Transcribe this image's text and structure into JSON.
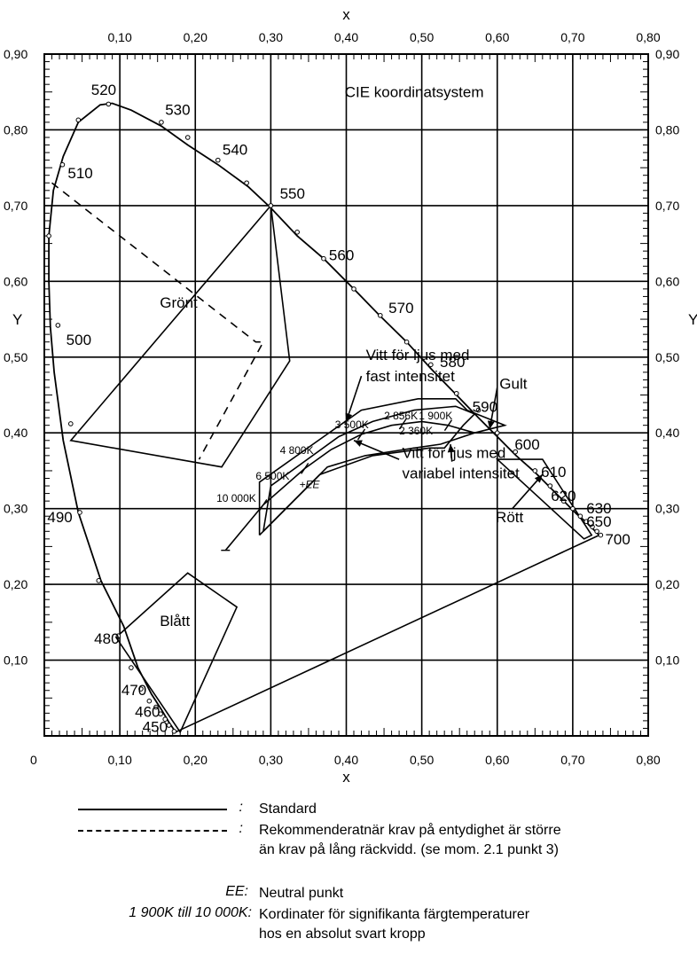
{
  "chart_data": {
    "type": "line",
    "title": "CIE koordinatsystem",
    "xlabel": "x",
    "ylabel": "Y",
    "xlim": [
      0,
      0.8
    ],
    "ylim": [
      0,
      0.9
    ],
    "grid": true,
    "x_ticks": [
      "0",
      "0,10",
      "0,20",
      "0,30",
      "0,40",
      "0,50",
      "0,60",
      "0,70",
      "0,80"
    ],
    "x_ticks_top": [
      "0,10",
      "0,20",
      "0,30",
      "0,40",
      "0,50",
      "0,60",
      "0,70",
      "0,80"
    ],
    "y_ticks": [
      "0,10",
      "0,20",
      "0,30",
      "0,40",
      "0,50",
      "0,60",
      "0,70",
      "0,80",
      "0,90"
    ],
    "y_ticks_right": [
      "0,10",
      "0,20",
      "0,30",
      "0,40",
      "0,50",
      "0,60",
      "0,70",
      "0,80",
      "0,90"
    ],
    "locus": [
      [
        0.174,
        0.005
      ],
      [
        0.165,
        0.018
      ],
      [
        0.155,
        0.035
      ],
      [
        0.142,
        0.055
      ],
      [
        0.124,
        0.09
      ],
      [
        0.105,
        0.145
      ],
      [
        0.075,
        0.205
      ],
      [
        0.045,
        0.295
      ],
      [
        0.025,
        0.39
      ],
      [
        0.013,
        0.48
      ],
      [
        0.008,
        0.54
      ],
      [
        0.006,
        0.6
      ],
      [
        0.006,
        0.66
      ],
      [
        0.012,
        0.72
      ],
      [
        0.025,
        0.765
      ],
      [
        0.045,
        0.81
      ],
      [
        0.074,
        0.833
      ],
      [
        0.09,
        0.835
      ],
      [
        0.115,
        0.826
      ],
      [
        0.155,
        0.805
      ],
      [
        0.19,
        0.78
      ],
      [
        0.23,
        0.754
      ],
      [
        0.27,
        0.725
      ],
      [
        0.3,
        0.697
      ],
      [
        0.335,
        0.66
      ],
      [
        0.37,
        0.63
      ],
      [
        0.41,
        0.59
      ],
      [
        0.444,
        0.555
      ],
      [
        0.48,
        0.52
      ],
      [
        0.512,
        0.485
      ],
      [
        0.546,
        0.45
      ],
      [
        0.575,
        0.42
      ],
      [
        0.6,
        0.395
      ],
      [
        0.625,
        0.37
      ],
      [
        0.65,
        0.348
      ],
      [
        0.67,
        0.328
      ],
      [
        0.69,
        0.308
      ],
      [
        0.705,
        0.293
      ],
      [
        0.718,
        0.282
      ],
      [
        0.735,
        0.265
      ]
    ],
    "locus_markers": [
      [
        0.172,
        0.006
      ],
      [
        0.165,
        0.014
      ],
      [
        0.16,
        0.022
      ],
      [
        0.154,
        0.029
      ],
      [
        0.148,
        0.038
      ],
      [
        0.139,
        0.046
      ],
      [
        0.128,
        0.062
      ],
      [
        0.115,
        0.09
      ],
      [
        0.098,
        0.132
      ],
      [
        0.072,
        0.205
      ],
      [
        0.047,
        0.295
      ],
      [
        0.035,
        0.412
      ],
      [
        0.018,
        0.542
      ],
      [
        0.006,
        0.66
      ],
      [
        0.024,
        0.754
      ],
      [
        0.045,
        0.813
      ],
      [
        0.085,
        0.834
      ],
      [
        0.155,
        0.81
      ],
      [
        0.19,
        0.79
      ],
      [
        0.23,
        0.76
      ],
      [
        0.268,
        0.73
      ],
      [
        0.3,
        0.7
      ],
      [
        0.335,
        0.665
      ],
      [
        0.37,
        0.63
      ],
      [
        0.41,
        0.59
      ],
      [
        0.445,
        0.555
      ],
      [
        0.48,
        0.52
      ],
      [
        0.512,
        0.49
      ],
      [
        0.546,
        0.452
      ],
      [
        0.575,
        0.43
      ],
      [
        0.6,
        0.4
      ],
      [
        0.624,
        0.375
      ],
      [
        0.65,
        0.35
      ],
      [
        0.67,
        0.33
      ],
      [
        0.688,
        0.31
      ],
      [
        0.7,
        0.3
      ],
      [
        0.71,
        0.29
      ],
      [
        0.718,
        0.283
      ],
      [
        0.726,
        0.276
      ],
      [
        0.732,
        0.27
      ],
      [
        0.737,
        0.265
      ]
    ],
    "purple_line": [
      [
        0.174,
        0.005
      ],
      [
        0.735,
        0.265
      ]
    ],
    "wavelengths": [
      {
        "label": "450",
        "x": 0.13,
        "y": 0.005
      },
      {
        "label": "460",
        "x": 0.12,
        "y": 0.025
      },
      {
        "label": "470",
        "x": 0.102,
        "y": 0.054
      },
      {
        "label": "480",
        "x": 0.066,
        "y": 0.122
      },
      {
        "label": "490",
        "x": 0.004,
        "y": 0.282
      },
      {
        "label": "500",
        "x": 0.029,
        "y": 0.516
      },
      {
        "label": "510",
        "x": 0.031,
        "y": 0.736
      },
      {
        "label": "520",
        "x": 0.062,
        "y": 0.846
      },
      {
        "label": "530",
        "x": 0.16,
        "y": 0.82
      },
      {
        "label": "540",
        "x": 0.236,
        "y": 0.767
      },
      {
        "label": "550",
        "x": 0.312,
        "y": 0.709
      },
      {
        "label": "560",
        "x": 0.377,
        "y": 0.628
      },
      {
        "label": "570",
        "x": 0.456,
        "y": 0.558
      },
      {
        "label": "580",
        "x": 0.524,
        "y": 0.487
      },
      {
        "label": "590",
        "x": 0.567,
        "y": 0.428
      },
      {
        "label": "600",
        "x": 0.623,
        "y": 0.378
      },
      {
        "label": "610",
        "x": 0.658,
        "y": 0.342
      },
      {
        "label": "620",
        "x": 0.671,
        "y": 0.31
      },
      {
        "label": "630",
        "x": 0.718,
        "y": 0.294
      },
      {
        "label": "650",
        "x": 0.718,
        "y": 0.276
      },
      {
        "label": "700",
        "x": 0.743,
        "y": 0.253
      }
    ],
    "regions": [
      {
        "label": "Grönt",
        "x": 0.153,
        "y": 0.565,
        "outline": [
          [
            0.3,
            0.7
          ],
          [
            0.325,
            0.495
          ],
          [
            0.235,
            0.355
          ],
          [
            0.035,
            0.39
          ]
        ]
      },
      {
        "label": "Blått",
        "x": 0.153,
        "y": 0.145,
        "outline": [
          [
            0.095,
            0.13
          ],
          [
            0.19,
            0.215
          ],
          [
            0.255,
            0.17
          ],
          [
            0.18,
            0.005
          ]
        ]
      },
      {
        "label": "Gult",
        "x": 0.603,
        "y": 0.458,
        "outline": []
      },
      {
        "label": "Rött",
        "x": 0.598,
        "y": 0.282,
        "outline": [
          [
            0.6,
            0.365
          ],
          [
            0.66,
            0.365
          ],
          [
            0.725,
            0.265
          ],
          [
            0.715,
            0.26
          ]
        ]
      }
    ],
    "recommended_dashed": [
      [
        0.01,
        0.73
      ],
      [
        0.28,
        0.52
      ],
      [
        0.29,
        0.52
      ],
      [
        0.205,
        0.365
      ]
    ],
    "white_fixed": [
      [
        0.285,
        0.265
      ],
      [
        0.285,
        0.335
      ],
      [
        0.37,
        0.395
      ],
      [
        0.42,
        0.43
      ],
      [
        0.495,
        0.445
      ],
      [
        0.545,
        0.445
      ],
      [
        0.56,
        0.43
      ],
      [
        0.61,
        0.41
      ],
      [
        0.57,
        0.4
      ],
      [
        0.525,
        0.385
      ],
      [
        0.49,
        0.38
      ],
      [
        0.425,
        0.37
      ],
      [
        0.375,
        0.355
      ],
      [
        0.285,
        0.265
      ]
    ],
    "white_variable": [
      [
        0.29,
        0.27
      ],
      [
        0.365,
        0.345
      ],
      [
        0.435,
        0.37
      ],
      [
        0.51,
        0.38
      ],
      [
        0.53,
        0.38
      ],
      [
        0.555,
        0.41
      ],
      [
        0.57,
        0.425
      ],
      [
        0.545,
        0.435
      ],
      [
        0.49,
        0.43
      ],
      [
        0.435,
        0.415
      ],
      [
        0.39,
        0.395
      ],
      [
        0.3,
        0.33
      ],
      [
        0.29,
        0.27
      ]
    ],
    "blackbody_locus": [
      [
        0.24,
        0.245
      ],
      [
        0.29,
        0.305
      ],
      [
        0.345,
        0.353
      ],
      [
        0.38,
        0.378
      ],
      [
        0.42,
        0.398
      ],
      [
        0.46,
        0.41
      ],
      [
        0.5,
        0.415
      ],
      [
        0.535,
        0.41
      ],
      [
        0.57,
        0.4
      ]
    ],
    "temperatures": [
      {
        "label": "1 900K",
        "x": 0.496,
        "y": 0.418
      },
      {
        "label": "2 856K",
        "x": 0.45,
        "y": 0.418
      },
      {
        "label": "2 360K",
        "x": 0.47,
        "y": 0.398
      },
      {
        "label": "3 500K",
        "x": 0.385,
        "y": 0.406
      },
      {
        "label": "4 800K",
        "x": 0.312,
        "y": 0.372
      },
      {
        "label": "6 500K",
        "x": 0.28,
        "y": 0.338
      },
      {
        "label": "10 000K",
        "x": 0.228,
        "y": 0.309
      }
    ],
    "neutral_point": {
      "label": "EE",
      "x": 0.333,
      "y": 0.333
    },
    "annotations": [
      {
        "text": "Vitt för ljus med",
        "x": 0.426,
        "y": 0.496
      },
      {
        "text": "fast intensitet",
        "x": 0.426,
        "y": 0.468
      },
      {
        "text": "Vitt för ljus med",
        "x": 0.474,
        "y": 0.367
      },
      {
        "text": "variabel intensitet",
        "x": 0.474,
        "y": 0.34
      }
    ],
    "legend": [
      {
        "key": ":",
        "style": "solid",
        "text": "Standard"
      },
      {
        "key": ":",
        "style": "dashed",
        "text": "Rekommenderatnär krav på entydighet är större",
        "text2": "än krav på lång räckvidd. (se mom. 2.1 punkt 3)"
      },
      {
        "key": "EE:",
        "style": "none",
        "text": "Neutral punkt"
      },
      {
        "key": "1 900K till 10 000K:",
        "style": "none",
        "text": "Kordinater för signifikanta färgtemperaturer",
        "text2": "hos en absolut svart kropp"
      }
    ]
  }
}
